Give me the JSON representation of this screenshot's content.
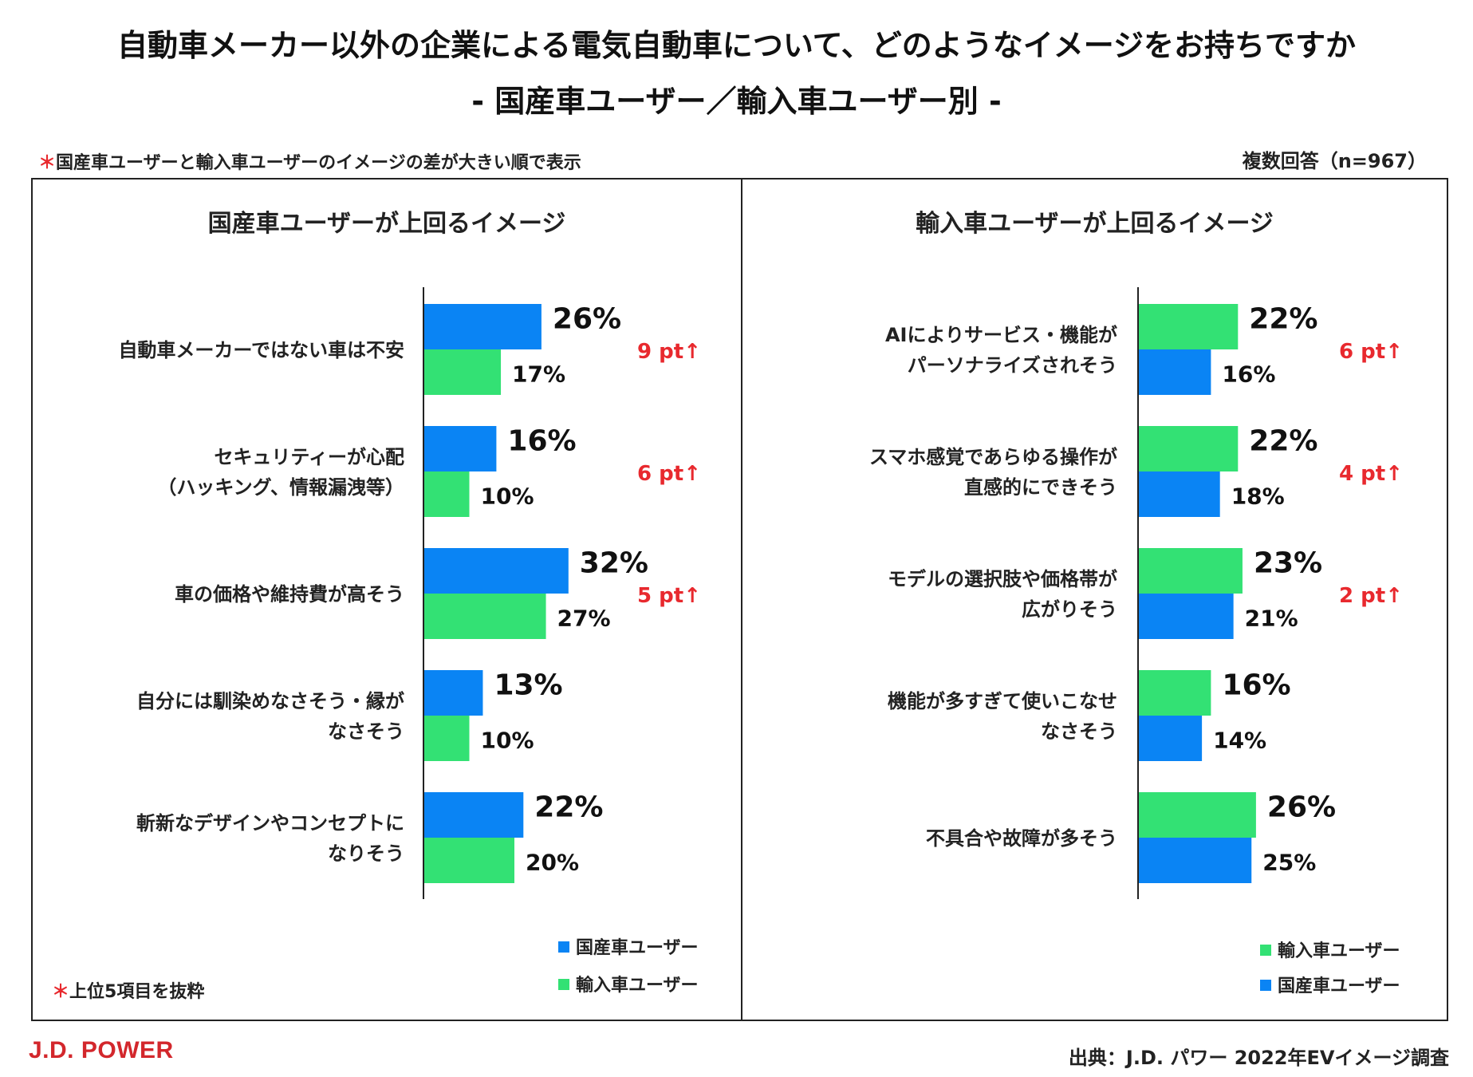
{
  "title_line1": "自動車メーカー以外の企業による電気自動車について、どのようなイメージをお持ちですか",
  "title_line2": "- 国産車ユーザー／輸入車ユーザー別 -",
  "sort_note_mark": "＊",
  "sort_note_text": "国産車ユーザーと輸入車ユーザーのイメージの差が大きい順で表示",
  "response_note": "複数回答（n=967）",
  "footnote_mark": "＊",
  "footnote_text": "上位5項目を抜粋",
  "logo": "J.D. POWER",
  "source": "出典：J.D. パワー 2022年EVイメージ調査",
  "colors": {
    "domestic": "#0a84f4",
    "imported": "#33e174",
    "diff": "#e8292e"
  },
  "chart_data": [
    {
      "type": "bar",
      "orientation": "horizontal",
      "title": "国産車ユーザーが上回るイメージ",
      "categories": [
        [
          "自動車メーカーではない車は不安"
        ],
        [
          "セキュリティーが心配",
          "（ハッキング、情報漏洩等）"
        ],
        [
          "車の価格や維持費が高そう"
        ],
        [
          "自分には馴染めなさそう・縁が",
          "なさそう"
        ],
        [
          "斬新なデザインやコンセプトに",
          "なりそう"
        ]
      ],
      "series": [
        {
          "name": "国産車ユーザー",
          "key": "domestic",
          "values": [
            26,
            16,
            32,
            13,
            22
          ],
          "labels": [
            "26%",
            "16%",
            "32%",
            "13%",
            "22%"
          ]
        },
        {
          "name": "輸入車ユーザー",
          "key": "imported",
          "values": [
            17,
            10,
            27,
            10,
            20
          ],
          "labels": [
            "17%",
            "10%",
            "27%",
            "10%",
            "20%"
          ]
        }
      ],
      "differences": [
        "9 pt↑",
        "6 pt↑",
        "5 pt↑",
        "",
        ""
      ],
      "unit": "%",
      "legend": [
        "国産車ユーザー",
        "輸入車ユーザー"
      ],
      "legend_keys": [
        "domestic",
        "imported"
      ]
    },
    {
      "type": "bar",
      "orientation": "horizontal",
      "title": "輸入車ユーザーが上回るイメージ",
      "categories": [
        [
          "AIによりサービス・機能が",
          "パーソナライズされそう"
        ],
        [
          "スマホ感覚であらゆる操作が",
          "直感的にできそう"
        ],
        [
          "モデルの選択肢や価格帯が",
          "広がりそう"
        ],
        [
          "機能が多すぎて使いこなせ",
          "なさそう"
        ],
        [
          "不具合や故障が多そう"
        ]
      ],
      "series": [
        {
          "name": "輸入車ユーザー",
          "key": "imported",
          "values": [
            22,
            22,
            23,
            16,
            26
          ],
          "labels": [
            "22%",
            "22%",
            "23%",
            "16%",
            "26%"
          ]
        },
        {
          "name": "国産車ユーザー",
          "key": "domestic",
          "values": [
            16,
            18,
            21,
            14,
            25
          ],
          "labels": [
            "16%",
            "18%",
            "21%",
            "14%",
            "25%"
          ]
        }
      ],
      "differences": [
        "6 pt↑",
        "4 pt↑",
        "2 pt↑",
        "",
        ""
      ],
      "unit": "%",
      "legend": [
        "輸入車ユーザー",
        "国産車ユーザー"
      ],
      "legend_keys": [
        "imported",
        "domestic"
      ]
    }
  ]
}
